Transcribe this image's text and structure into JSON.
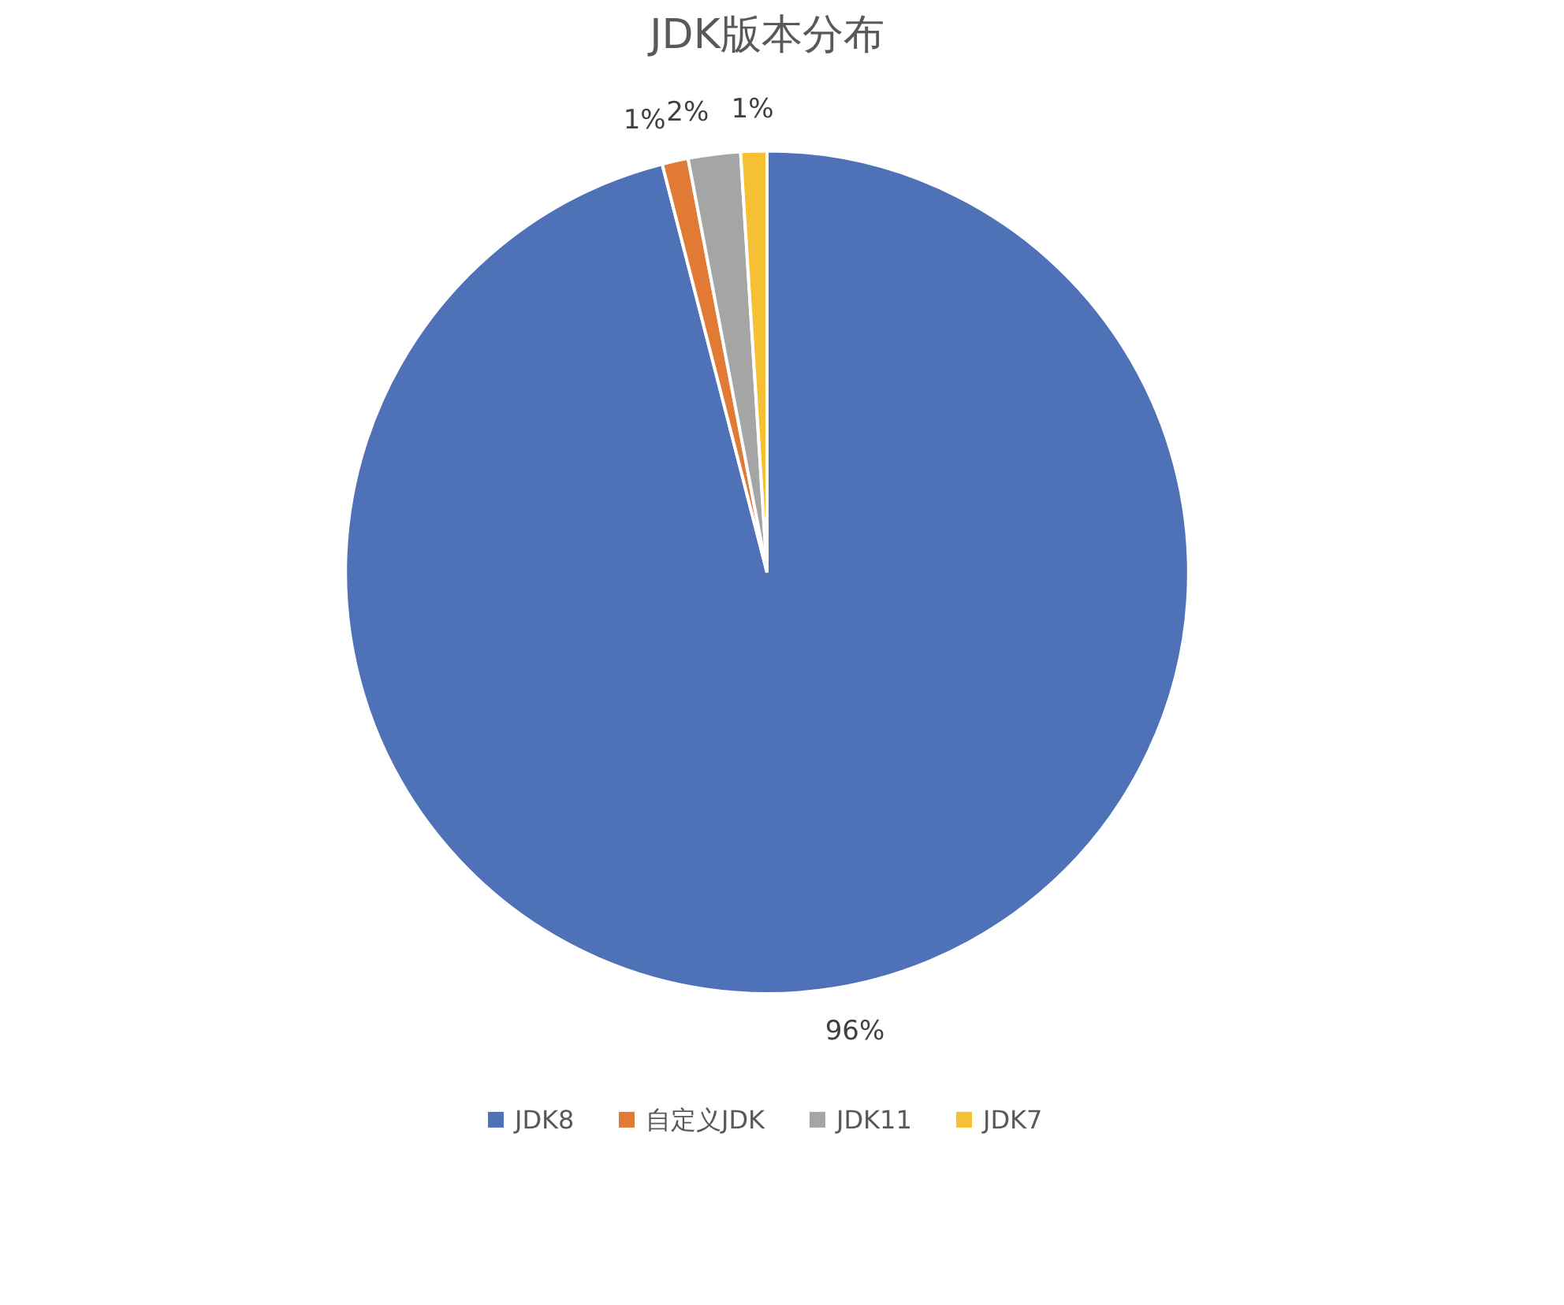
{
  "chart_data": {
    "type": "pie",
    "title": "JDK版本分布",
    "categories": [
      "JDK8",
      "自定义JDK",
      "JDK11",
      "JDK7"
    ],
    "values": [
      96,
      1,
      2,
      1
    ],
    "colors": [
      "#4e71b8",
      "#e07a35",
      "#a5a5a5",
      "#f5c033"
    ],
    "value_labels": [
      "96%",
      "1%",
      "2%",
      "1%"
    ],
    "legend": "bottom"
  }
}
